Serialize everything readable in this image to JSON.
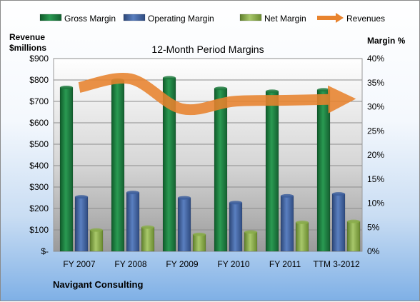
{
  "chart_data": {
    "type": "bar",
    "title": "12-Month Period Margins",
    "company": "Navigant Consulting",
    "categories": [
      "FY 2007",
      "FY 2008",
      "FY 2009",
      "FY 2010",
      "FY 2011",
      "TTM 3-2012"
    ],
    "ylabel_left": [
      "Revenue",
      "$millions"
    ],
    "ylabel_right": "Margin %",
    "y_left_range": [
      0,
      900
    ],
    "y_left_ticks": [
      "$-",
      "$100",
      "$200",
      "$300",
      "$400",
      "$500",
      "$600",
      "$700",
      "$800",
      "$900"
    ],
    "y_right_range": [
      0,
      40
    ],
    "y_right_ticks": [
      "0%",
      "5%",
      "10%",
      "15%",
      "20%",
      "25%",
      "30%",
      "35%",
      "40%"
    ],
    "series": [
      {
        "name": "Gross Margin",
        "axis": "right",
        "kind": "bar",
        "color": "#1e7a3e",
        "values": [
          34.0,
          35.5,
          36.0,
          33.8,
          33.2,
          33.5
        ]
      },
      {
        "name": "Operating Margin",
        "axis": "right",
        "kind": "bar",
        "color": "#3d5f9e",
        "values": [
          11.3,
          12.2,
          11.1,
          10.1,
          11.5,
          11.9
        ]
      },
      {
        "name": "Net Margin",
        "axis": "right",
        "kind": "bar",
        "color": "#8aad4a",
        "values": [
          4.4,
          5.0,
          3.5,
          4.0,
          6.0,
          6.2
        ]
      },
      {
        "name": "Revenues",
        "axis": "left",
        "kind": "line",
        "color": "#e8832e",
        "values": [
          765,
          805,
          665,
          700,
          705,
          710
        ]
      }
    ],
    "grid": true,
    "legend": "top"
  }
}
